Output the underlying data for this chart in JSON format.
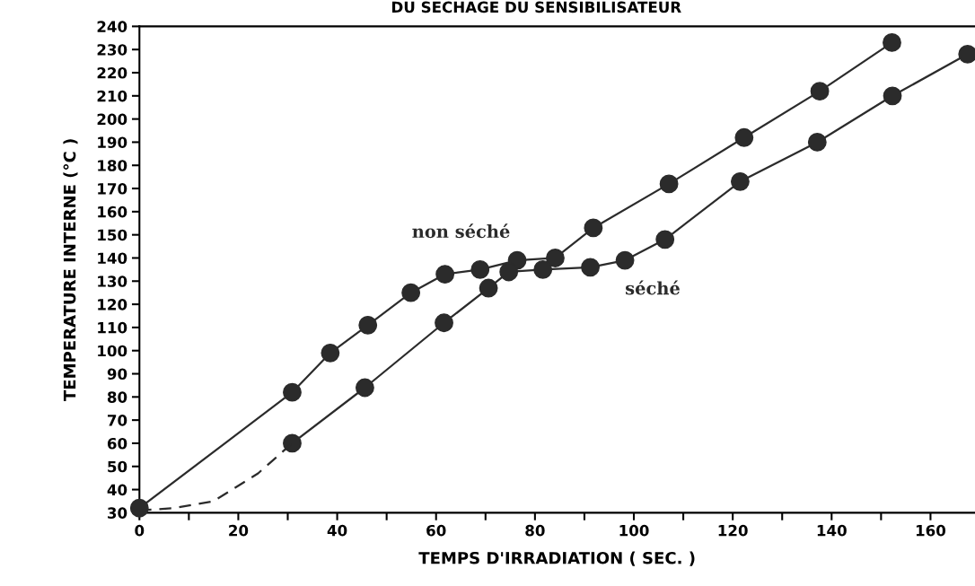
{
  "chart_data": {
    "type": "line",
    "title": "DU SECHAGE DU SENSIBILISATEUR",
    "xlabel": "TEMPS D'IRRADIATION ( SEC. )",
    "ylabel": "TEMPERATURE INTERNE (°C )",
    "series": [
      {
        "name": "non séché",
        "color": "#2b2b2b",
        "marker": "circle",
        "line_style": "solid",
        "x": [
          0,
          30.9,
          38.6,
          46.2,
          54.9,
          61.8,
          68.9,
          76.4,
          84.1,
          91.8,
          107.1,
          122.3,
          137.6,
          152.2
        ],
        "values": [
          32,
          82,
          99,
          111,
          125,
          133,
          135,
          139,
          140,
          153,
          172,
          192,
          212,
          233
        ]
      },
      {
        "name": "séché",
        "color": "#2b2b2b",
        "marker": "circle",
        "line_style": "solid",
        "x": [
          30.9,
          45.6,
          61.6,
          70.6,
          74.7,
          81.6,
          91.2,
          98.2,
          106.3,
          121.5,
          137.1,
          152.3,
          167.5
        ],
        "values": [
          60,
          84,
          112,
          127,
          134,
          135,
          136,
          139,
          148,
          173,
          190,
          210,
          228
        ]
      },
      {
        "color": "#2b2b2b",
        "marker": "none",
        "line_style": "dashed",
        "x": [
          0,
          7,
          15,
          19.5,
          24,
          30.9
        ],
        "values": [
          31,
          32,
          35,
          41,
          47,
          60
        ]
      }
    ],
    "xlim": [
      0,
      169
    ],
    "ylim": [
      30,
      240
    ],
    "xticks": [
      0,
      {
        "value": 10,
        "label": null
      },
      20,
      {
        "value": 30,
        "label": null
      },
      40,
      {
        "value": 50,
        "label": null
      },
      60,
      {
        "value": 70,
        "label": null
      },
      80,
      {
        "value": 90,
        "label": null
      },
      100,
      {
        "value": 110,
        "label": null
      },
      120,
      {
        "value": 130,
        "label": null
      },
      140,
      {
        "value": 150,
        "label": null
      },
      160
    ],
    "yticks": [
      30,
      40,
      50,
      60,
      70,
      80,
      90,
      100,
      110,
      120,
      130,
      140,
      150,
      160,
      170,
      180,
      190,
      200,
      210,
      220,
      230,
      240
    ],
    "grid": false,
    "legend": false
  }
}
